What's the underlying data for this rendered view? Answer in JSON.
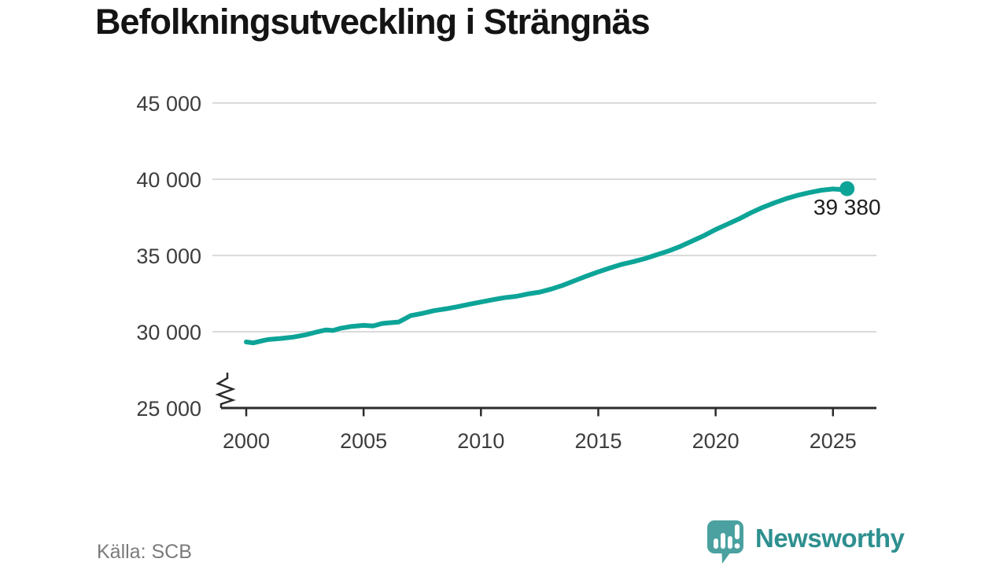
{
  "chart_data": {
    "type": "line",
    "title": "Befolkningsutveckling i Strängnäs",
    "series_name": "Befolkning",
    "points": [
      [
        2000,
        29330
      ],
      [
        2000.3,
        29270
      ],
      [
        2000.8,
        29450
      ],
      [
        2001,
        29500
      ],
      [
        2001.5,
        29560
      ],
      [
        2002,
        29650
      ],
      [
        2002.5,
        29790
      ],
      [
        2003,
        29980
      ],
      [
        2003.4,
        30120
      ],
      [
        2003.7,
        30080
      ],
      [
        2004,
        30220
      ],
      [
        2004.5,
        30350
      ],
      [
        2005,
        30420
      ],
      [
        2005.4,
        30380
      ],
      [
        2005.8,
        30540
      ],
      [
        2006,
        30570
      ],
      [
        2006.5,
        30640
      ],
      [
        2007,
        31050
      ],
      [
        2007.5,
        31200
      ],
      [
        2008,
        31380
      ],
      [
        2008.5,
        31500
      ],
      [
        2009,
        31640
      ],
      [
        2009.5,
        31800
      ],
      [
        2010,
        31950
      ],
      [
        2010.5,
        32100
      ],
      [
        2011,
        32230
      ],
      [
        2011.5,
        32320
      ],
      [
        2012,
        32480
      ],
      [
        2012.5,
        32600
      ],
      [
        2013,
        32800
      ],
      [
        2013.5,
        33050
      ],
      [
        2014,
        33350
      ],
      [
        2014.5,
        33650
      ],
      [
        2015,
        33930
      ],
      [
        2015.5,
        34180
      ],
      [
        2016,
        34420
      ],
      [
        2016.5,
        34600
      ],
      [
        2017,
        34800
      ],
      [
        2017.5,
        35050
      ],
      [
        2018,
        35300
      ],
      [
        2018.5,
        35600
      ],
      [
        2019,
        35950
      ],
      [
        2019.5,
        36300
      ],
      [
        2020,
        36700
      ],
      [
        2020.5,
        37050
      ],
      [
        2021,
        37400
      ],
      [
        2021.5,
        37800
      ],
      [
        2022,
        38150
      ],
      [
        2022.5,
        38450
      ],
      [
        2023,
        38720
      ],
      [
        2023.5,
        38950
      ],
      [
        2024,
        39130
      ],
      [
        2024.5,
        39280
      ],
      [
        2025,
        39360
      ],
      [
        2025.3,
        39330
      ],
      [
        2025.6,
        39380
      ]
    ],
    "latest_value": 39380,
    "latest_label": "39 380",
    "y_ticks": [
      25000,
      30000,
      35000,
      40000,
      45000
    ],
    "y_tick_labels": [
      "25 000",
      "30 000",
      "35 000",
      "40 000",
      "45 000"
    ],
    "x_ticks": [
      2000,
      2005,
      2010,
      2015,
      2020,
      2025
    ],
    "x_tick_labels": [
      "2000",
      "2005",
      "2010",
      "2015",
      "2020",
      "2025"
    ],
    "ylim": [
      25000,
      45000
    ],
    "xlim": [
      2000,
      2026.9
    ],
    "axis_break": true,
    "grid": "horizontal",
    "legend": "none",
    "line_color": "#0da498",
    "xlabel": "",
    "ylabel": ""
  },
  "footer": {
    "source": "Källa: SCB",
    "logo_text": "Newsworthy"
  },
  "colors": {
    "line": "#0da498",
    "logo_icon": "#4aa1a0",
    "logo_text": "#2e8f8f",
    "grid": "#dadada",
    "axis": "#2b2b2b"
  }
}
